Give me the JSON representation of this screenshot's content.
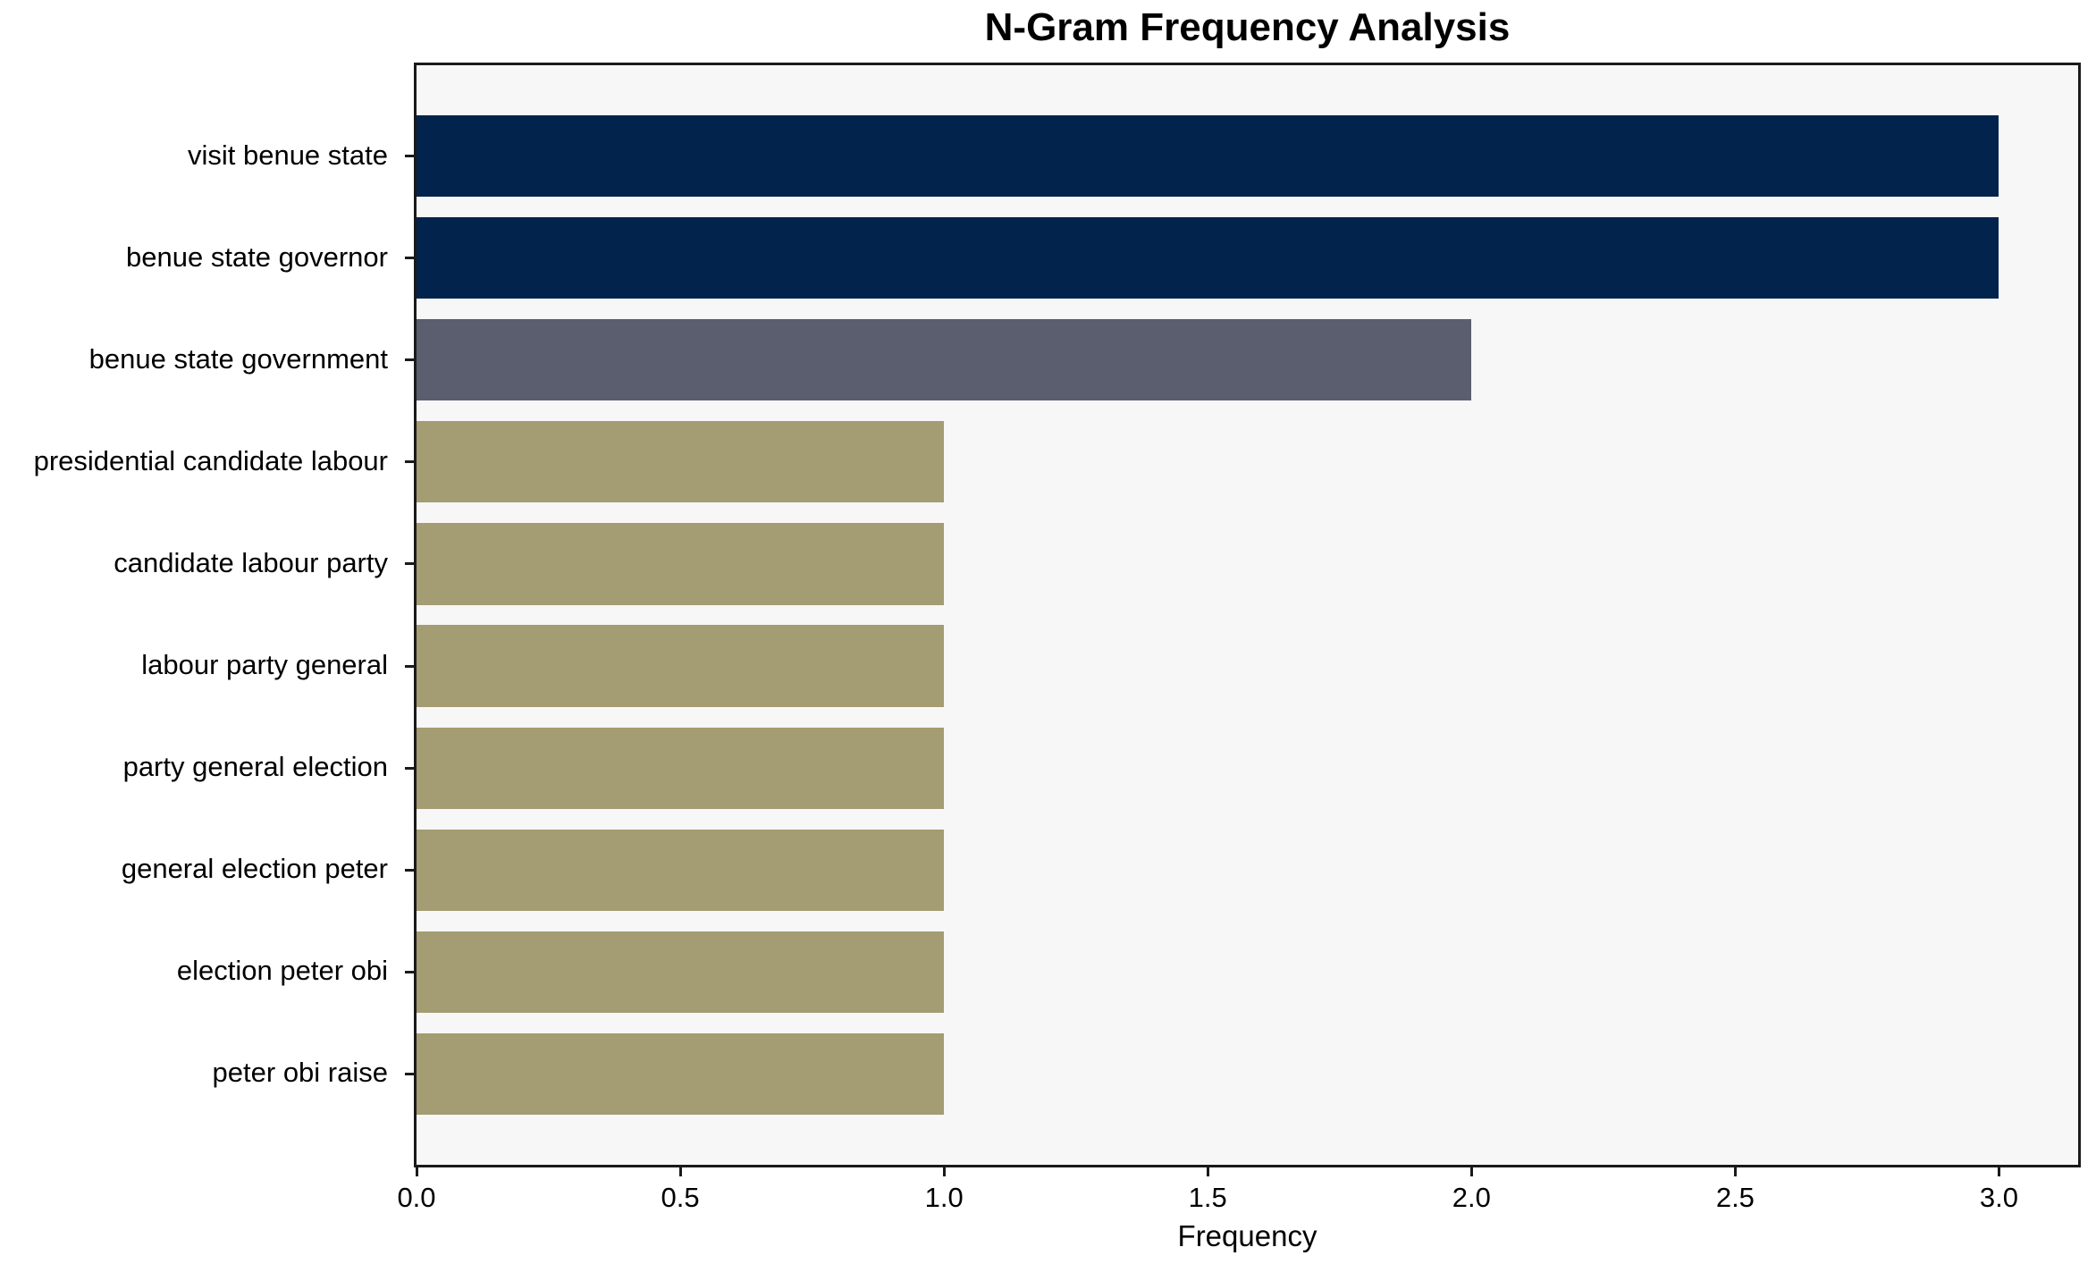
{
  "chart": {
    "title": "N-Gram Frequency Analysis",
    "xlabel": "Frequency"
  },
  "chart_data": {
    "type": "bar",
    "orientation": "horizontal",
    "title": "N-Gram Frequency Analysis",
    "xlabel": "Frequency",
    "ylabel": "",
    "categories": [
      "visit benue state",
      "benue state governor",
      "benue state government",
      "presidential candidate labour",
      "candidate labour party",
      "labour party general",
      "party general election",
      "general election peter",
      "election peter obi",
      "peter obi raise"
    ],
    "values": [
      3,
      3,
      2,
      1,
      1,
      1,
      1,
      1,
      1,
      1
    ],
    "bar_colors": [
      "#02234C",
      "#02234C",
      "#5A5E6E",
      "#A49C72",
      "#A49C72",
      "#A49C72",
      "#A49C72",
      "#A49C72",
      "#A49C72",
      "#A49C72"
    ],
    "color_legend": {
      "frequency_3": "#02234C",
      "frequency_2": "#5A5E6E",
      "frequency_1": "#A49C72"
    },
    "x_ticks": [
      0.0,
      0.5,
      1.0,
      1.5,
      2.0,
      2.5,
      3.0
    ],
    "x_tick_labels": [
      "0.0",
      "0.5",
      "1.0",
      "1.5",
      "2.0",
      "2.5",
      "3.0"
    ],
    "xlim": [
      0,
      3.15
    ],
    "bar_height_fraction": 0.8,
    "grid": false,
    "legend": false,
    "plot_background": "#F7F7F7",
    "figure_background": "#FFFFFF",
    "spine_color": "#1A1A1A",
    "text_color": "#000000"
  }
}
